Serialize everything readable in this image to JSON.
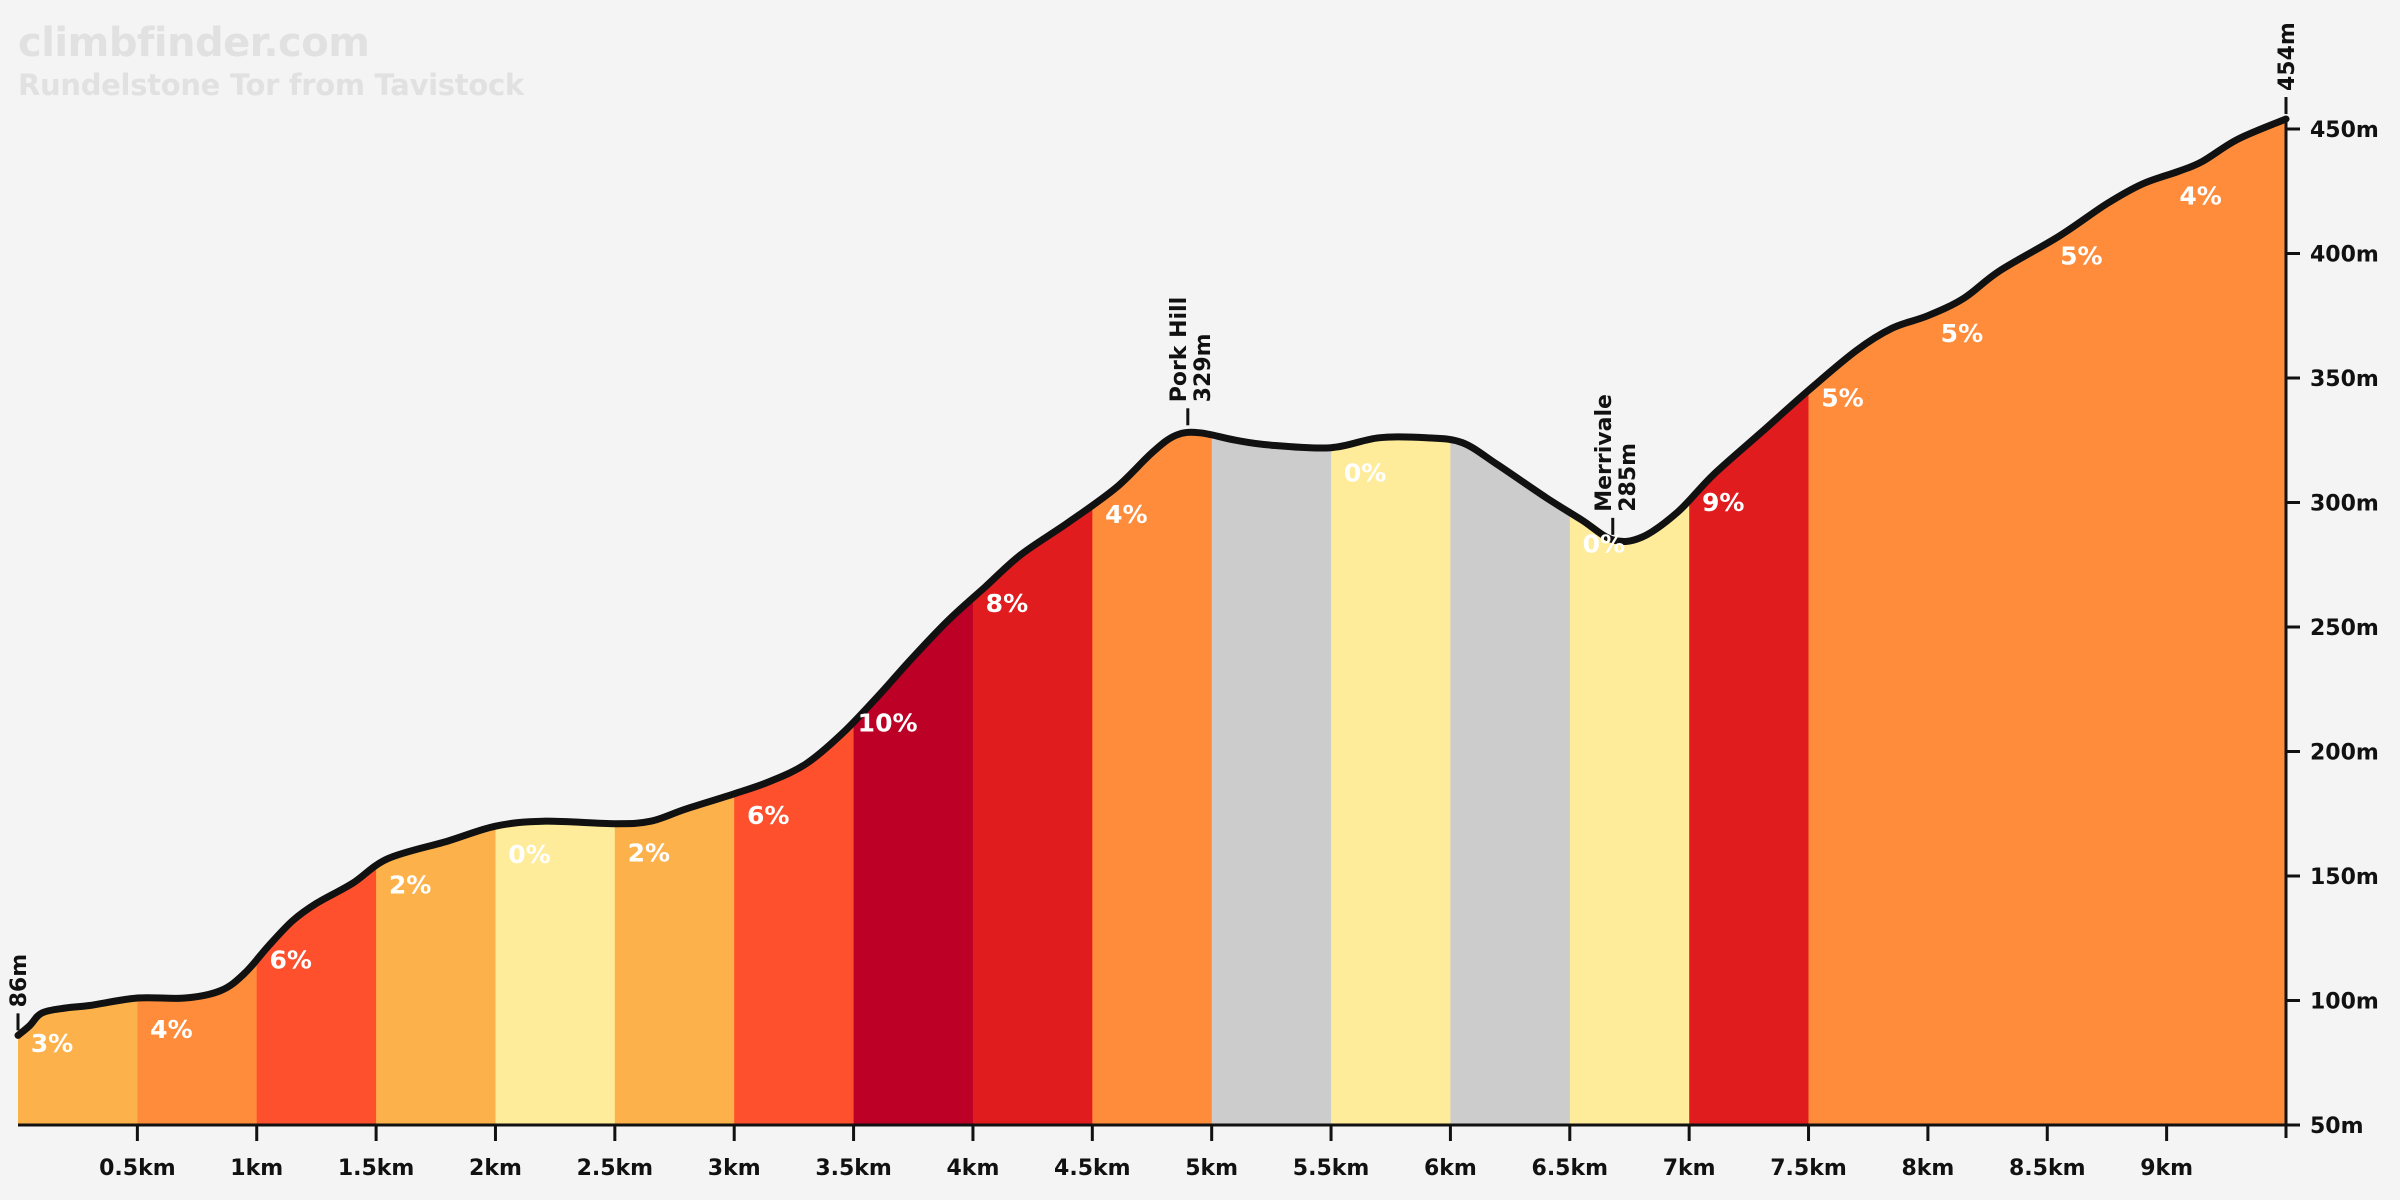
{
  "header": {
    "brand": "climbfinder.com",
    "climb_title": "Rundelstone Tor from Tavistock"
  },
  "colors": {
    "background": "#f4f4f4",
    "brand_text": "#e1e1e1",
    "profile_line": "#111111",
    "gradient_classes": {
      "flat": "#cccccc",
      "0%": "#ffec9a",
      "2-3%": "#fdb14b",
      "4-5%": "#fe8c3b",
      "6%": "#ff502e",
      "8-9%": "#e11c1e",
      "10%": "#bd0026"
    }
  },
  "chart_data": {
    "type": "area",
    "title": "Rundelstone Tor from Tavistock",
    "xlabel": "",
    "ylabel": "",
    "x_unit": "km",
    "y_unit": "m",
    "xlim": [
      0,
      9.5
    ],
    "ylim": [
      50,
      454
    ],
    "x_ticks": [
      "0.5km",
      "1km",
      "1.5km",
      "2km",
      "2.5km",
      "3km",
      "3.5km",
      "4km",
      "4.5km",
      "5km",
      "5.5km",
      "6km",
      "6.5km",
      "7km",
      "7.5km",
      "8km",
      "8.5km",
      "9km"
    ],
    "x_tick_values": [
      0.5,
      1,
      1.5,
      2,
      2.5,
      3,
      3.5,
      4,
      4.5,
      5,
      5.5,
      6,
      6.5,
      7,
      7.5,
      8,
      8.5,
      9
    ],
    "y_ticks": [
      "50m",
      "100m",
      "150m",
      "200m",
      "250m",
      "300m",
      "350m",
      "400m",
      "450m"
    ],
    "y_tick_values": [
      50,
      100,
      150,
      200,
      250,
      300,
      350,
      400,
      450
    ],
    "profile": [
      [
        0,
        86
      ],
      [
        0.05,
        90
      ],
      [
        0.1,
        95
      ],
      [
        0.2,
        97
      ],
      [
        0.3,
        98
      ],
      [
        0.5,
        101
      ],
      [
        0.7,
        101
      ],
      [
        0.85,
        104
      ],
      [
        0.95,
        111
      ],
      [
        1.05,
        122
      ],
      [
        1.15,
        132
      ],
      [
        1.25,
        139
      ],
      [
        1.4,
        147
      ],
      [
        1.55,
        157
      ],
      [
        1.8,
        164
      ],
      [
        2.0,
        170
      ],
      [
        2.2,
        172
      ],
      [
        2.5,
        171
      ],
      [
        2.65,
        172
      ],
      [
        2.8,
        177
      ],
      [
        3.0,
        183
      ],
      [
        3.15,
        188
      ],
      [
        3.3,
        195
      ],
      [
        3.45,
        207
      ],
      [
        3.6,
        222
      ],
      [
        3.75,
        238
      ],
      [
        3.9,
        253
      ],
      [
        4.05,
        266
      ],
      [
        4.2,
        279
      ],
      [
        4.4,
        292
      ],
      [
        4.6,
        306
      ],
      [
        4.75,
        320
      ],
      [
        4.85,
        327
      ],
      [
        4.95,
        328
      ],
      [
        5.1,
        325
      ],
      [
        5.25,
        323
      ],
      [
        5.5,
        322
      ],
      [
        5.7,
        326
      ],
      [
        5.9,
        326
      ],
      [
        6.05,
        324
      ],
      [
        6.2,
        315
      ],
      [
        6.4,
        302
      ],
      [
        6.55,
        293
      ],
      [
        6.68,
        285
      ],
      [
        6.8,
        286
      ],
      [
        6.95,
        296
      ],
      [
        7.1,
        311
      ],
      [
        7.3,
        328
      ],
      [
        7.5,
        345
      ],
      [
        7.7,
        361
      ],
      [
        7.85,
        370
      ],
      [
        8.0,
        375
      ],
      [
        8.15,
        382
      ],
      [
        8.3,
        393
      ],
      [
        8.55,
        407
      ],
      [
        8.75,
        420
      ],
      [
        8.9,
        428
      ],
      [
        9.05,
        433
      ],
      [
        9.15,
        437
      ],
      [
        9.3,
        446
      ],
      [
        9.5,
        454
      ]
    ],
    "segments": [
      {
        "start": 0,
        "end": 0.5,
        "gradient": "3%",
        "label_visible": true,
        "color": "#fdb14b"
      },
      {
        "start": 0.5,
        "end": 1.0,
        "gradient": "4%",
        "label_visible": true,
        "color": "#fe8c3b"
      },
      {
        "start": 1.0,
        "end": 1.5,
        "gradient": "6%",
        "label_visible": true,
        "color": "#ff502e"
      },
      {
        "start": 1.5,
        "end": 2.0,
        "gradient": "2%",
        "label_visible": true,
        "color": "#fdb14b"
      },
      {
        "start": 2.0,
        "end": 2.5,
        "gradient": "0%",
        "label_visible": true,
        "color": "#ffec9a"
      },
      {
        "start": 2.5,
        "end": 3.0,
        "gradient": "2%",
        "label_visible": true,
        "color": "#fdb14b"
      },
      {
        "start": 3.0,
        "end": 3.5,
        "gradient": "6%",
        "label_visible": true,
        "color": "#ff502e"
      },
      {
        "start": 3.5,
        "end": 4.0,
        "gradient": "10%",
        "label_visible": true,
        "color": "#bd0026"
      },
      {
        "start": 4.0,
        "end": 4.5,
        "gradient": "8%",
        "label_visible": true,
        "color": "#e11c1e"
      },
      {
        "start": 4.5,
        "end": 5.0,
        "gradient": "4%",
        "label_visible": true,
        "color": "#fe8c3b"
      },
      {
        "start": 5.0,
        "end": 5.5,
        "gradient": "",
        "label_visible": false,
        "color": "#cccccc"
      },
      {
        "start": 5.5,
        "end": 6.0,
        "gradient": "0%",
        "label_visible": true,
        "color": "#ffec9a"
      },
      {
        "start": 6.0,
        "end": 6.5,
        "gradient": "",
        "label_visible": false,
        "color": "#cccccc"
      },
      {
        "start": 6.5,
        "end": 7.0,
        "gradient": "0%",
        "label_visible": true,
        "color": "#ffec9a"
      },
      {
        "start": 7.0,
        "end": 7.5,
        "gradient": "9%",
        "label_visible": true,
        "color": "#e11c1e"
      },
      {
        "start": 7.5,
        "end": 8.0,
        "gradient": "5%",
        "label_visible": true,
        "color": "#fe8c3b"
      },
      {
        "start": 8.0,
        "end": 8.5,
        "gradient": "5%",
        "label_visible": true,
        "color": "#fe8c3b"
      },
      {
        "start": 8.5,
        "end": 9.0,
        "gradient": "5%",
        "label_visible": true,
        "color": "#fe8c3b"
      },
      {
        "start": 9.0,
        "end": 9.5,
        "gradient": "4%",
        "label_visible": true,
        "color": "#fe8c3b"
      }
    ],
    "annotations": [
      {
        "x": 0,
        "elevation": 86,
        "name": "",
        "label": "86m"
      },
      {
        "x": 4.9,
        "elevation": 329,
        "name": "Pork Hill",
        "label": "329m"
      },
      {
        "x": 6.68,
        "elevation": 285,
        "name": "Merrivale",
        "label": "285m"
      },
      {
        "x": 9.5,
        "elevation": 454,
        "name": "",
        "label": "454m"
      }
    ]
  }
}
